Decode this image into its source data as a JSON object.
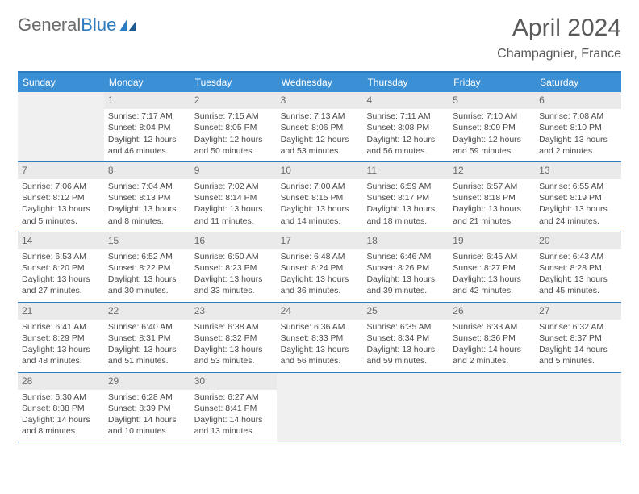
{
  "logo": {
    "text1": "General",
    "text2": "Blue"
  },
  "title": "April 2024",
  "location": "Champagnier, France",
  "colors": {
    "header_bar": "#3b8fd4",
    "border": "#2f7bbf",
    "empty_cell": "#f0f0f0",
    "daynum_bg": "#eaeaea",
    "text": "#4a4a4a",
    "title_text": "#5a5a5a",
    "logo_gray": "#6b6b6b",
    "logo_blue": "#2f7bbf",
    "background": "#ffffff"
  },
  "typography": {
    "body_font": "Arial, Helvetica, sans-serif",
    "title_size_pt": 22,
    "location_size_pt": 12,
    "weekday_size_pt": 9,
    "daynum_size_pt": 9,
    "cell_size_pt": 8
  },
  "weekdays": [
    "Sunday",
    "Monday",
    "Tuesday",
    "Wednesday",
    "Thursday",
    "Friday",
    "Saturday"
  ],
  "weeks": [
    [
      null,
      {
        "n": "1",
        "sr": "Sunrise: 7:17 AM",
        "ss": "Sunset: 8:04 PM",
        "dl": "Daylight: 12 hours and 46 minutes."
      },
      {
        "n": "2",
        "sr": "Sunrise: 7:15 AM",
        "ss": "Sunset: 8:05 PM",
        "dl": "Daylight: 12 hours and 50 minutes."
      },
      {
        "n": "3",
        "sr": "Sunrise: 7:13 AM",
        "ss": "Sunset: 8:06 PM",
        "dl": "Daylight: 12 hours and 53 minutes."
      },
      {
        "n": "4",
        "sr": "Sunrise: 7:11 AM",
        "ss": "Sunset: 8:08 PM",
        "dl": "Daylight: 12 hours and 56 minutes."
      },
      {
        "n": "5",
        "sr": "Sunrise: 7:10 AM",
        "ss": "Sunset: 8:09 PM",
        "dl": "Daylight: 12 hours and 59 minutes."
      },
      {
        "n": "6",
        "sr": "Sunrise: 7:08 AM",
        "ss": "Sunset: 8:10 PM",
        "dl": "Daylight: 13 hours and 2 minutes."
      }
    ],
    [
      {
        "n": "7",
        "sr": "Sunrise: 7:06 AM",
        "ss": "Sunset: 8:12 PM",
        "dl": "Daylight: 13 hours and 5 minutes."
      },
      {
        "n": "8",
        "sr": "Sunrise: 7:04 AM",
        "ss": "Sunset: 8:13 PM",
        "dl": "Daylight: 13 hours and 8 minutes."
      },
      {
        "n": "9",
        "sr": "Sunrise: 7:02 AM",
        "ss": "Sunset: 8:14 PM",
        "dl": "Daylight: 13 hours and 11 minutes."
      },
      {
        "n": "10",
        "sr": "Sunrise: 7:00 AM",
        "ss": "Sunset: 8:15 PM",
        "dl": "Daylight: 13 hours and 14 minutes."
      },
      {
        "n": "11",
        "sr": "Sunrise: 6:59 AM",
        "ss": "Sunset: 8:17 PM",
        "dl": "Daylight: 13 hours and 18 minutes."
      },
      {
        "n": "12",
        "sr": "Sunrise: 6:57 AM",
        "ss": "Sunset: 8:18 PM",
        "dl": "Daylight: 13 hours and 21 minutes."
      },
      {
        "n": "13",
        "sr": "Sunrise: 6:55 AM",
        "ss": "Sunset: 8:19 PM",
        "dl": "Daylight: 13 hours and 24 minutes."
      }
    ],
    [
      {
        "n": "14",
        "sr": "Sunrise: 6:53 AM",
        "ss": "Sunset: 8:20 PM",
        "dl": "Daylight: 13 hours and 27 minutes."
      },
      {
        "n": "15",
        "sr": "Sunrise: 6:52 AM",
        "ss": "Sunset: 8:22 PM",
        "dl": "Daylight: 13 hours and 30 minutes."
      },
      {
        "n": "16",
        "sr": "Sunrise: 6:50 AM",
        "ss": "Sunset: 8:23 PM",
        "dl": "Daylight: 13 hours and 33 minutes."
      },
      {
        "n": "17",
        "sr": "Sunrise: 6:48 AM",
        "ss": "Sunset: 8:24 PM",
        "dl": "Daylight: 13 hours and 36 minutes."
      },
      {
        "n": "18",
        "sr": "Sunrise: 6:46 AM",
        "ss": "Sunset: 8:26 PM",
        "dl": "Daylight: 13 hours and 39 minutes."
      },
      {
        "n": "19",
        "sr": "Sunrise: 6:45 AM",
        "ss": "Sunset: 8:27 PM",
        "dl": "Daylight: 13 hours and 42 minutes."
      },
      {
        "n": "20",
        "sr": "Sunrise: 6:43 AM",
        "ss": "Sunset: 8:28 PM",
        "dl": "Daylight: 13 hours and 45 minutes."
      }
    ],
    [
      {
        "n": "21",
        "sr": "Sunrise: 6:41 AM",
        "ss": "Sunset: 8:29 PM",
        "dl": "Daylight: 13 hours and 48 minutes."
      },
      {
        "n": "22",
        "sr": "Sunrise: 6:40 AM",
        "ss": "Sunset: 8:31 PM",
        "dl": "Daylight: 13 hours and 51 minutes."
      },
      {
        "n": "23",
        "sr": "Sunrise: 6:38 AM",
        "ss": "Sunset: 8:32 PM",
        "dl": "Daylight: 13 hours and 53 minutes."
      },
      {
        "n": "24",
        "sr": "Sunrise: 6:36 AM",
        "ss": "Sunset: 8:33 PM",
        "dl": "Daylight: 13 hours and 56 minutes."
      },
      {
        "n": "25",
        "sr": "Sunrise: 6:35 AM",
        "ss": "Sunset: 8:34 PM",
        "dl": "Daylight: 13 hours and 59 minutes."
      },
      {
        "n": "26",
        "sr": "Sunrise: 6:33 AM",
        "ss": "Sunset: 8:36 PM",
        "dl": "Daylight: 14 hours and 2 minutes."
      },
      {
        "n": "27",
        "sr": "Sunrise: 6:32 AM",
        "ss": "Sunset: 8:37 PM",
        "dl": "Daylight: 14 hours and 5 minutes."
      }
    ],
    [
      {
        "n": "28",
        "sr": "Sunrise: 6:30 AM",
        "ss": "Sunset: 8:38 PM",
        "dl": "Daylight: 14 hours and 8 minutes."
      },
      {
        "n": "29",
        "sr": "Sunrise: 6:28 AM",
        "ss": "Sunset: 8:39 PM",
        "dl": "Daylight: 14 hours and 10 minutes."
      },
      {
        "n": "30",
        "sr": "Sunrise: 6:27 AM",
        "ss": "Sunset: 8:41 PM",
        "dl": "Daylight: 14 hours and 13 minutes."
      },
      null,
      null,
      null,
      null
    ]
  ]
}
